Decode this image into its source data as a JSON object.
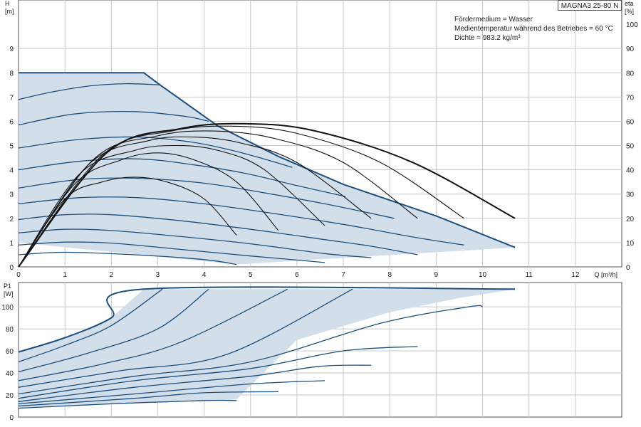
{
  "chart_data": [
    {
      "type": "line",
      "model": "MAGNA3 25-80 N",
      "annotations": [
        "Fördermedium = Wasser",
        "Medientemperatur während des Betriebes = 60 °C",
        "Dichte = 983.2 kg/m³"
      ],
      "xlabel": "Q [m³/h]",
      "ylabel_left": [
        "H",
        "[m]"
      ],
      "ylabel_right": [
        "eta",
        "[%]"
      ],
      "xlim": [
        0,
        13
      ],
      "ylim": [
        0,
        11
      ],
      "ylim_right": [
        0,
        110
      ],
      "xticks": [
        0,
        1,
        2,
        3,
        4,
        5,
        6,
        7,
        8,
        9,
        10,
        11,
        12
      ],
      "yticks": [
        0,
        1,
        2,
        3,
        4,
        5,
        6,
        7,
        8,
        9
      ],
      "yticks_right": [
        0,
        10,
        20,
        30,
        40,
        50,
        60,
        70,
        80,
        90,
        100
      ],
      "grid": true,
      "operating_envelope": [
        [
          0,
          8.0
        ],
        [
          2.7,
          8.0
        ],
        [
          4.3,
          5.8
        ],
        [
          7.0,
          3.4
        ],
        [
          9.0,
          2.1
        ],
        [
          10.7,
          0.8
        ],
        [
          4.7,
          0.1
        ],
        [
          0,
          1.0
        ]
      ],
      "head_curves": [
        {
          "values": [
            [
              0,
              8.0
            ],
            [
              2.7,
              8.0
            ],
            [
              3.05,
              7.5
            ],
            [
              4.3,
              5.8
            ],
            [
              5.6,
              4.55
            ],
            [
              7.0,
              3.4
            ],
            [
              9.0,
              2.1
            ],
            [
              10.7,
              0.8
            ]
          ]
        },
        {
          "values": [
            [
              0,
              6.9
            ],
            [
              0.7,
              7.2
            ],
            [
              1.5,
              7.45
            ],
            [
              2.3,
              7.55
            ],
            [
              3.05,
              7.5
            ]
          ]
        },
        {
          "values": [
            [
              0,
              5.85
            ],
            [
              1.2,
              6.3
            ],
            [
              2.5,
              6.4
            ],
            [
              3.6,
              6.2
            ],
            [
              4.1,
              6.0
            ]
          ]
        },
        {
          "values": [
            [
              0,
              4.9
            ],
            [
              1.3,
              5.25
            ],
            [
              2.6,
              5.35
            ],
            [
              3.7,
              5.15
            ],
            [
              4.5,
              4.85
            ],
            [
              5.2,
              4.5
            ],
            [
              5.9,
              4.1
            ]
          ]
        },
        {
          "values": [
            [
              0,
              4.0
            ],
            [
              1.3,
              4.35
            ],
            [
              2.6,
              4.45
            ],
            [
              3.8,
              4.2
            ],
            [
              4.9,
              3.85
            ],
            [
              6.0,
              3.35
            ],
            [
              7.05,
              2.9
            ]
          ]
        },
        {
          "values": [
            [
              0,
              3.25
            ],
            [
              1.3,
              3.6
            ],
            [
              2.6,
              3.65
            ],
            [
              4.0,
              3.45
            ],
            [
              5.3,
              3.05
            ],
            [
              6.6,
              2.6
            ],
            [
              8.1,
              2.0
            ]
          ]
        },
        {
          "values": [
            [
              0,
              2.6
            ],
            [
              1.3,
              2.85
            ],
            [
              2.6,
              2.85
            ],
            [
              4.0,
              2.6
            ],
            [
              5.5,
              2.2
            ],
            [
              7.0,
              1.75
            ],
            [
              8.6,
              1.2
            ],
            [
              9.6,
              0.9
            ]
          ]
        },
        {
          "values": [
            [
              0,
              1.95
            ],
            [
              1.0,
              2.15
            ],
            [
              2.0,
              2.15
            ],
            [
              3.5,
              1.9
            ],
            [
              5.0,
              1.55
            ],
            [
              6.5,
              1.15
            ],
            [
              7.6,
              0.85
            ],
            [
              8.6,
              0.5
            ]
          ]
        },
        {
          "values": [
            [
              0,
              1.4
            ],
            [
              1.0,
              1.55
            ],
            [
              2.0,
              1.5
            ],
            [
              3.5,
              1.25
            ],
            [
              5.0,
              0.95
            ],
            [
              6.6,
              0.55
            ],
            [
              7.6,
              0.38
            ]
          ]
        },
        {
          "values": [
            [
              0,
              0.9
            ],
            [
              1.0,
              1.02
            ],
            [
              2.0,
              0.98
            ],
            [
              3.5,
              0.72
            ],
            [
              5.0,
              0.45
            ],
            [
              6.6,
              0.18
            ]
          ]
        },
        {
          "values": [
            [
              0,
              0.5
            ],
            [
              1.0,
              0.6
            ],
            [
              2.5,
              0.5
            ],
            [
              4.0,
              0.3
            ],
            [
              4.7,
              0.1
            ]
          ]
        }
      ],
      "efficiency_curves": [
        {
          "values": [
            [
              0,
              0
            ],
            [
              1.0,
              28
            ],
            [
              1.8,
              35
            ],
            [
              2.5,
              37
            ],
            [
              3.2,
              35
            ],
            [
              4.0,
              28
            ],
            [
              4.7,
              13
            ]
          ]
        },
        {
          "values": [
            [
              0,
              0
            ],
            [
              1.2,
              34
            ],
            [
              2.2,
              44
            ],
            [
              3.0,
              47
            ],
            [
              3.8,
              44
            ],
            [
              4.7,
              35
            ],
            [
              5.6,
              15
            ]
          ]
        },
        {
          "values": [
            [
              0,
              0
            ],
            [
              1.3,
              38
            ],
            [
              2.5,
              48
            ],
            [
              3.4,
              50
            ],
            [
              4.3,
              48
            ],
            [
              5.3,
              40
            ],
            [
              6.6,
              17
            ]
          ]
        },
        {
          "values": [
            [
              0,
              0
            ],
            [
              1.5,
              42
            ],
            [
              2.8,
              52
            ],
            [
              3.8,
              53.5
            ],
            [
              4.8,
              51
            ],
            [
              6.0,
              43
            ],
            [
              7.6,
              20
            ]
          ]
        },
        {
          "values": [
            [
              0,
              0
            ],
            [
              1.6,
              44
            ],
            [
              3.0,
              54
            ],
            [
              4.2,
              56
            ],
            [
              5.5,
              53
            ],
            [
              7.0,
              43
            ],
            [
              8.6,
              20
            ]
          ]
        },
        {
          "values": [
            [
              0,
              0
            ],
            [
              1.8,
              46
            ],
            [
              3.3,
              56
            ],
            [
              4.6,
              58
            ],
            [
              6.0,
              55
            ],
            [
              7.8,
              43
            ],
            [
              9.6,
              20
            ]
          ]
        },
        {
          "values": [
            [
              0,
              0
            ],
            [
              1.9,
              47
            ],
            [
              3.5,
              57
            ],
            [
              4.9,
              59
            ],
            [
              6.4,
              56
            ],
            [
              8.5,
              43
            ],
            [
              10.7,
              20
            ]
          ]
        }
      ]
    },
    {
      "type": "line",
      "xlabel": "",
      "ylabel_left": [
        "P1",
        "[W]"
      ],
      "xlim": [
        0,
        13
      ],
      "ylim": [
        0,
        122
      ],
      "yticks": [
        0,
        20,
        40,
        60,
        80,
        100
      ],
      "grid": true,
      "power_envelope": [
        [
          0,
          59
        ],
        [
          1.0,
          72
        ],
        [
          2.0,
          90
        ],
        [
          2.7,
          116
        ],
        [
          10.7,
          116
        ],
        [
          9.5,
          108
        ],
        [
          8.0,
          95
        ],
        [
          6.0,
          70
        ],
        [
          4.7,
          16
        ],
        [
          0,
          8
        ]
      ],
      "power_curves": [
        {
          "values": [
            [
              0,
              59
            ],
            [
              1.0,
              72
            ],
            [
              2.0,
              90
            ],
            [
              2.7,
              116
            ],
            [
              10.7,
              116
            ]
          ]
        },
        {
          "values": [
            [
              0,
              50
            ],
            [
              1.0,
              65
            ],
            [
              2.0,
              83
            ],
            [
              3.1,
              116
            ]
          ]
        },
        {
          "values": [
            [
              0,
              41
            ],
            [
              1.5,
              58
            ],
            [
              3.0,
              80
            ],
            [
              4.1,
              116
            ]
          ]
        },
        {
          "values": [
            [
              0,
              33
            ],
            [
              1.8,
              48
            ],
            [
              3.5,
              68
            ],
            [
              5.8,
              116
            ]
          ]
        },
        {
          "values": [
            [
              0,
              27
            ],
            [
              2.2,
              42
            ],
            [
              4.5,
              57
            ],
            [
              7.2,
              116
            ]
          ]
        },
        {
          "values": [
            [
              0,
              21
            ],
            [
              2.5,
              37
            ],
            [
              5.0,
              50
            ],
            [
              7.8,
              85
            ],
            [
              9.7,
              100
            ],
            [
              10.0,
              100
            ]
          ]
        },
        {
          "values": [
            [
              0,
              17
            ],
            [
              2.5,
              33
            ],
            [
              5.0,
              44
            ],
            [
              7.0,
              60
            ],
            [
              8.6,
              64
            ]
          ]
        },
        {
          "values": [
            [
              0,
              14
            ],
            [
              2.5,
              27
            ],
            [
              5.0,
              37
            ],
            [
              6.5,
              46
            ],
            [
              7.6,
              47
            ]
          ]
        },
        {
          "values": [
            [
              0,
              12
            ],
            [
              2.5,
              21
            ],
            [
              5.0,
              30
            ],
            [
              6.6,
              33
            ]
          ]
        },
        {
          "values": [
            [
              0,
              10
            ],
            [
              2.5,
              17
            ],
            [
              4.0,
              22
            ],
            [
              5.6,
              23
            ]
          ]
        },
        {
          "values": [
            [
              0,
              8
            ],
            [
              2.0,
              12
            ],
            [
              4.0,
              15
            ],
            [
              4.7,
              15
            ]
          ]
        }
      ]
    }
  ]
}
